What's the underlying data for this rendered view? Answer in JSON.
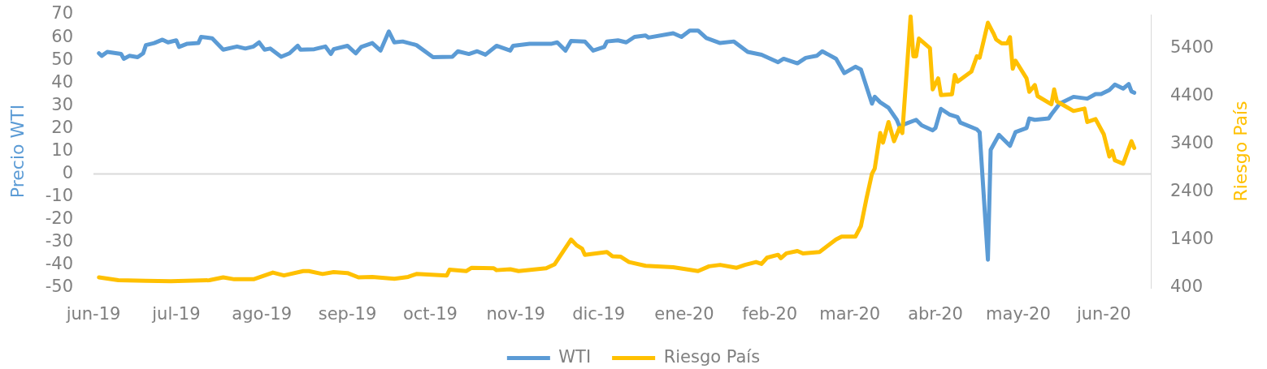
{
  "chart_data": {
    "type": "line",
    "ylabel": "Precio WTI",
    "y2label": "Riesgo País",
    "legend": "bottom",
    "xlim": [
      "2019-06-01",
      "2020-06-18"
    ],
    "xticks": [
      {
        "value": "2019-06-01",
        "label": "jun-19"
      },
      {
        "value": "2019-07-01",
        "label": "jul-19"
      },
      {
        "value": "2019-08-01",
        "label": "ago-19"
      },
      {
        "value": "2019-09-01",
        "label": "sep-19"
      },
      {
        "value": "2019-10-01",
        "label": "oct-19"
      },
      {
        "value": "2019-11-01",
        "label": "nov-19"
      },
      {
        "value": "2019-12-01",
        "label": "dic-19"
      },
      {
        "value": "2020-01-01",
        "label": "ene-20"
      },
      {
        "value": "2020-02-01",
        "label": "feb-20"
      },
      {
        "value": "2020-03-01",
        "label": "mar-20"
      },
      {
        "value": "2020-04-01",
        "label": "abr-20"
      },
      {
        "value": "2020-05-01",
        "label": "may-20"
      },
      {
        "value": "2020-06-01",
        "label": "jun-20"
      }
    ],
    "ylim": [
      -50,
      70
    ],
    "yticks": [
      -50,
      -40,
      -30,
      -20,
      -10,
      0,
      10,
      20,
      30,
      40,
      50,
      60,
      70
    ],
    "y2lim": [
      400,
      6100
    ],
    "y2ticks": [
      400,
      1400,
      2400,
      3400,
      4400,
      5400
    ],
    "ref_lines": [
      {
        "axis": "y",
        "value": 0,
        "color": "#d9d9d9"
      }
    ],
    "series": [
      {
        "name": "WTI",
        "color": "#5b9bd5",
        "x": [
          "2019-06-03",
          "2019-06-04",
          "2019-06-06",
          "2019-06-11",
          "2019-06-12",
          "2019-06-14",
          "2019-06-17",
          "2019-06-19",
          "2019-06-20",
          "2019-06-23",
          "2019-06-26",
          "2019-06-28",
          "2019-07-01",
          "2019-07-02",
          "2019-07-05",
          "2019-07-09",
          "2019-07-10",
          "2019-07-14",
          "2019-07-18",
          "2019-07-23",
          "2019-07-26",
          "2019-07-29",
          "2019-07-31",
          "2019-08-02",
          "2019-08-04",
          "2019-08-08",
          "2019-08-11",
          "2019-08-14",
          "2019-08-15",
          "2019-08-20",
          "2019-08-24",
          "2019-08-26",
          "2019-08-27",
          "2019-09-01",
          "2019-09-04",
          "2019-09-06",
          "2019-09-10",
          "2019-09-13",
          "2019-09-16",
          "2019-09-18",
          "2019-09-21",
          "2019-09-26",
          "2019-10-02",
          "2019-10-09",
          "2019-10-11",
          "2019-10-15",
          "2019-10-18",
          "2019-10-21",
          "2019-10-25",
          "2019-10-30",
          "2019-10-31",
          "2019-11-06",
          "2019-11-14",
          "2019-11-16",
          "2019-11-19",
          "2019-11-21",
          "2019-11-26",
          "2019-11-29",
          "2019-12-03",
          "2019-12-04",
          "2019-12-08",
          "2019-12-11",
          "2019-12-14",
          "2019-12-18",
          "2019-12-19",
          "2019-12-28",
          "2019-12-31",
          "2020-01-03",
          "2020-01-06",
          "2020-01-09",
          "2020-01-14",
          "2020-01-19",
          "2020-01-24",
          "2020-01-29",
          "2020-02-04",
          "2020-02-06",
          "2020-02-11",
          "2020-02-14",
          "2020-02-18",
          "2020-02-20",
          "2020-02-25",
          "2020-02-28",
          "2020-03-03",
          "2020-03-05",
          "2020-03-09",
          "2020-03-10",
          "2020-03-12",
          "2020-03-15",
          "2020-03-18",
          "2020-03-19",
          "2020-03-21",
          "2020-03-25",
          "2020-03-27",
          "2020-03-31",
          "2020-04-01",
          "2020-04-03",
          "2020-04-06",
          "2020-04-09",
          "2020-04-10",
          "2020-04-16",
          "2020-04-17",
          "2020-04-20",
          "2020-04-21",
          "2020-04-24",
          "2020-04-28",
          "2020-04-30",
          "2020-05-04",
          "2020-05-05",
          "2020-05-07",
          "2020-05-12",
          "2020-05-13",
          "2020-05-16",
          "2020-05-21",
          "2020-05-26",
          "2020-05-29",
          "2020-05-31",
          "2020-06-03",
          "2020-06-05",
          "2020-06-08",
          "2020-06-10",
          "2020-06-11",
          "2020-06-12"
        ],
        "values": [
          53.0,
          51.9,
          53.6,
          52.7,
          50.6,
          51.9,
          51.3,
          53.0,
          56.6,
          57.5,
          59.0,
          57.8,
          58.7,
          55.8,
          57.2,
          57.5,
          60.2,
          59.6,
          54.6,
          56.0,
          55.1,
          56.0,
          57.8,
          54.6,
          55.1,
          51.5,
          53.0,
          56.3,
          54.6,
          54.8,
          56.0,
          52.7,
          54.8,
          56.3,
          53.0,
          55.8,
          57.5,
          54.2,
          62.6,
          57.8,
          58.2,
          56.6,
          51.3,
          51.5,
          53.9,
          52.7,
          53.9,
          52.4,
          56.3,
          54.2,
          56.3,
          57.2,
          57.2,
          57.8,
          54.2,
          58.4,
          58.2,
          54.2,
          55.8,
          58.2,
          58.7,
          57.8,
          60.2,
          60.8,
          59.9,
          61.8,
          60.2,
          63.0,
          63.0,
          59.7,
          57.5,
          58.2,
          53.6,
          52.4,
          49.1,
          50.6,
          48.6,
          51.0,
          51.9,
          53.9,
          50.6,
          44.3,
          47.1,
          45.9,
          30.9,
          33.9,
          31.5,
          29.1,
          23.8,
          20.8,
          22.0,
          23.8,
          21.4,
          19.2,
          20.2,
          28.6,
          26.2,
          25.0,
          22.6,
          19.6,
          18.4,
          -37.6,
          10.6,
          17.2,
          12.4,
          18.4,
          20.2,
          24.4,
          23.8,
          24.4,
          26.2,
          30.9,
          33.9,
          33.1,
          35.1,
          35.1,
          36.9,
          39.3,
          37.5,
          39.5,
          36.3,
          35.7
        ]
      },
      {
        "name": "Riesgo País",
        "color": "#ffc000",
        "axis": "y2",
        "x": [
          "2019-06-03",
          "2019-06-10",
          "2019-06-20",
          "2019-06-29",
          "2019-07-13",
          "2019-07-18",
          "2019-07-22",
          "2019-07-29",
          "2019-08-05",
          "2019-08-09",
          "2019-08-16",
          "2019-08-18",
          "2019-08-23",
          "2019-08-27",
          "2019-09-01",
          "2019-09-05",
          "2019-09-10",
          "2019-09-18",
          "2019-09-23",
          "2019-09-26",
          "2019-10-07",
          "2019-10-08",
          "2019-10-14",
          "2019-10-16",
          "2019-10-24",
          "2019-10-25",
          "2019-10-30",
          "2019-11-02",
          "2019-11-12",
          "2019-11-15",
          "2019-11-21",
          "2019-11-23",
          "2019-11-25",
          "2019-11-26",
          "2019-12-04",
          "2019-12-06",
          "2019-12-09",
          "2019-12-12",
          "2019-12-18",
          "2019-12-28",
          "2020-01-06",
          "2020-01-10",
          "2020-01-14",
          "2020-01-20",
          "2020-01-23",
          "2020-01-27",
          "2020-01-29",
          "2020-01-31",
          "2020-02-04",
          "2020-02-05",
          "2020-02-07",
          "2020-02-11",
          "2020-02-13",
          "2020-02-19",
          "2020-02-25",
          "2020-02-27",
          "2020-03-03",
          "2020-03-05",
          "2020-03-07",
          "2020-03-09",
          "2020-03-10",
          "2020-03-12",
          "2020-03-13",
          "2020-03-15",
          "2020-03-17",
          "2020-03-19",
          "2020-03-20",
          "2020-03-23",
          "2020-03-24",
          "2020-03-25",
          "2020-03-26",
          "2020-03-30",
          "2020-03-31",
          "2020-04-02",
          "2020-04-03",
          "2020-04-07",
          "2020-04-08",
          "2020-04-09",
          "2020-04-14",
          "2020-04-16",
          "2020-04-17",
          "2020-04-20",
          "2020-04-22",
          "2020-04-23",
          "2020-04-25",
          "2020-04-27",
          "2020-04-28",
          "2020-04-29",
          "2020-04-30",
          "2020-05-04",
          "2020-05-05",
          "2020-05-07",
          "2020-05-08",
          "2020-05-13",
          "2020-05-14",
          "2020-05-15",
          "2020-05-21",
          "2020-05-25",
          "2020-05-26",
          "2020-05-29",
          "2020-06-01",
          "2020-06-03",
          "2020-06-04",
          "2020-06-05",
          "2020-06-08",
          "2020-06-11",
          "2020-06-12"
        ],
        "values": [
          620,
          560,
          550,
          540,
          560,
          620,
          580,
          580,
          720,
          660,
          750,
          750,
          690,
          730,
          710,
          620,
          630,
          590,
          630,
          690,
          660,
          780,
          750,
          820,
          810,
          770,
          790,
          750,
          810,
          890,
          1410,
          1290,
          1220,
          1090,
          1150,
          1060,
          1050,
          940,
          860,
          830,
          750,
          850,
          880,
          820,
          880,
          940,
          900,
          1030,
          1090,
          1020,
          1120,
          1170,
          1120,
          1150,
          1410,
          1470,
          1470,
          1690,
          2260,
          2780,
          2890,
          3630,
          3430,
          3860,
          3460,
          3740,
          3630,
          6060,
          5230,
          5230,
          5600,
          5400,
          4540,
          4770,
          4420,
          4440,
          4840,
          4700,
          4910,
          5230,
          5200,
          5930,
          5710,
          5580,
          5500,
          5500,
          5630,
          4970,
          5140,
          4770,
          4490,
          4630,
          4400,
          4230,
          4540,
          4290,
          4090,
          4140,
          3860,
          3920,
          3600,
          3140,
          3260,
          3060,
          2990,
          3460,
          3320
        ]
      }
    ]
  }
}
